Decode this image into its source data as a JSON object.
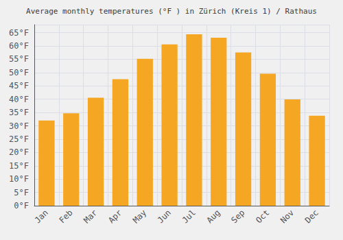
{
  "chart_data": {
    "type": "bar",
    "title": "Average monthly temperatures (°F ) in Zürich (Kreis 1) / Rathaus",
    "categories": [
      "Jan",
      "Feb",
      "Mar",
      "Apr",
      "May",
      "Jun",
      "Jul",
      "Aug",
      "Sep",
      "Oct",
      "Nov",
      "Dec"
    ],
    "values": [
      32.0,
      34.7,
      40.6,
      47.5,
      55.2,
      60.6,
      64.4,
      63.1,
      57.6,
      49.6,
      39.9,
      33.8
    ],
    "color": "#F5A623",
    "ylim": [
      0,
      68
    ],
    "yticks": [
      {
        "value": 0,
        "label": "0°F"
      },
      {
        "value": 5,
        "label": "5°F"
      },
      {
        "value": 10,
        "label": "10°F"
      },
      {
        "value": 15,
        "label": "15°F"
      },
      {
        "value": 20,
        "label": "20°F"
      },
      {
        "value": 25,
        "label": "25°F"
      },
      {
        "value": 30,
        "label": "30°F"
      },
      {
        "value": 35,
        "label": "35°F"
      },
      {
        "value": 40,
        "label": "40°F"
      },
      {
        "value": 45,
        "label": "45°F"
      },
      {
        "value": 50,
        "label": "50°F"
      },
      {
        "value": 55,
        "label": "55°F"
      },
      {
        "value": 60,
        "label": "60°F"
      },
      {
        "value": 65,
        "label": "65°F"
      }
    ],
    "grid": true
  }
}
